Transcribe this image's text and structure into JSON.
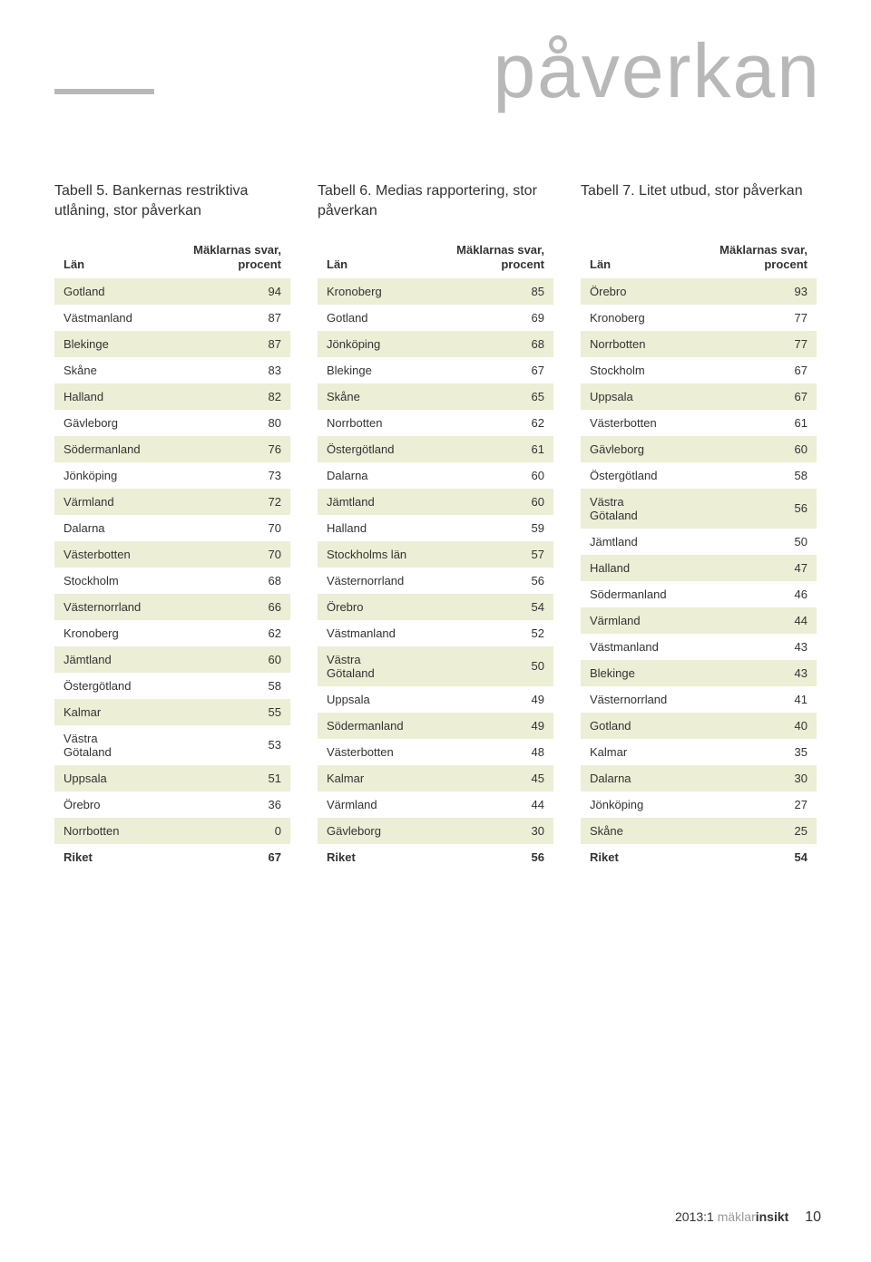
{
  "page_title": "påverkan",
  "colors": {
    "rule": "#b8b8b8",
    "title": "#b8b8b8",
    "row_odd_bg": "#eceed6",
    "row_even_bg": "#ffffff",
    "text": "#333333"
  },
  "footer": {
    "prefix": "2013:1",
    "brand_grey": "mäklar",
    "brand_bold": "insikt",
    "page_number": "10"
  },
  "header_col1": "Län",
  "header_col2": "Mäklarnas svar, procent",
  "tables": [
    {
      "caption": "Tabell 5. Bankernas restriktiva utlåning, stor påverkan",
      "rows": [
        [
          "Gotland",
          "94"
        ],
        [
          "Västmanland",
          "87"
        ],
        [
          "Blekinge",
          "87"
        ],
        [
          "Skåne",
          "83"
        ],
        [
          "Halland",
          "82"
        ],
        [
          "Gävleborg",
          "80"
        ],
        [
          "Södermanland",
          "76"
        ],
        [
          "Jönköping",
          "73"
        ],
        [
          "Värmland",
          "72"
        ],
        [
          "Dalarna",
          "70"
        ],
        [
          "Västerbotten",
          "70"
        ],
        [
          "Stockholm",
          "68"
        ],
        [
          "Västernorrland",
          "66"
        ],
        [
          "Kronoberg",
          "62"
        ],
        [
          "Jämtland",
          "60"
        ],
        [
          "Östergötland",
          "58"
        ],
        [
          "Kalmar",
          "55"
        ],
        [
          "Västra Götaland",
          "53"
        ],
        [
          "Uppsala",
          "51"
        ],
        [
          "Örebro",
          "36"
        ],
        [
          "Norrbotten",
          "0"
        ],
        [
          "Riket",
          "67"
        ]
      ]
    },
    {
      "caption": "Tabell 6. Medias rapportering, stor påverkan",
      "rows": [
        [
          "Kronoberg",
          "85"
        ],
        [
          "Gotland",
          "69"
        ],
        [
          "Jönköping",
          "68"
        ],
        [
          "Blekinge",
          "67"
        ],
        [
          "Skåne",
          "65"
        ],
        [
          "Norrbotten",
          "62"
        ],
        [
          "Östergötland",
          "61"
        ],
        [
          "Dalarna",
          "60"
        ],
        [
          "Jämtland",
          "60"
        ],
        [
          "Halland",
          "59"
        ],
        [
          "Stockholms län",
          "57"
        ],
        [
          "Västernorrland",
          "56"
        ],
        [
          "Örebro",
          "54"
        ],
        [
          "Västmanland",
          "52"
        ],
        [
          "Västra Götaland",
          "50"
        ],
        [
          "Uppsala",
          "49"
        ],
        [
          "Södermanland",
          "49"
        ],
        [
          "Västerbotten",
          "48"
        ],
        [
          "Kalmar",
          "45"
        ],
        [
          "Värmland",
          "44"
        ],
        [
          "Gävleborg",
          "30"
        ],
        [
          "Riket",
          "56"
        ]
      ]
    },
    {
      "caption": "Tabell 7. Litet utbud, stor påverkan",
      "rows": [
        [
          "Örebro",
          "93"
        ],
        [
          "Kronoberg",
          "77"
        ],
        [
          "Norrbotten",
          "77"
        ],
        [
          "Stockholm",
          "67"
        ],
        [
          "Uppsala",
          "67"
        ],
        [
          "Västerbotten",
          "61"
        ],
        [
          "Gävleborg",
          "60"
        ],
        [
          "Östergötland",
          "58"
        ],
        [
          "Västra Götaland",
          "56"
        ],
        [
          "Jämtland",
          "50"
        ],
        [
          "Halland",
          "47"
        ],
        [
          "Södermanland",
          "46"
        ],
        [
          "Värmland",
          "44"
        ],
        [
          "Västmanland",
          "43"
        ],
        [
          "Blekinge",
          "43"
        ],
        [
          "Västernorrland",
          "41"
        ],
        [
          "Gotland",
          "40"
        ],
        [
          "Kalmar",
          "35"
        ],
        [
          "Dalarna",
          "30"
        ],
        [
          "Jönköping",
          "27"
        ],
        [
          "Skåne",
          "25"
        ],
        [
          "Riket",
          "54"
        ]
      ]
    }
  ]
}
